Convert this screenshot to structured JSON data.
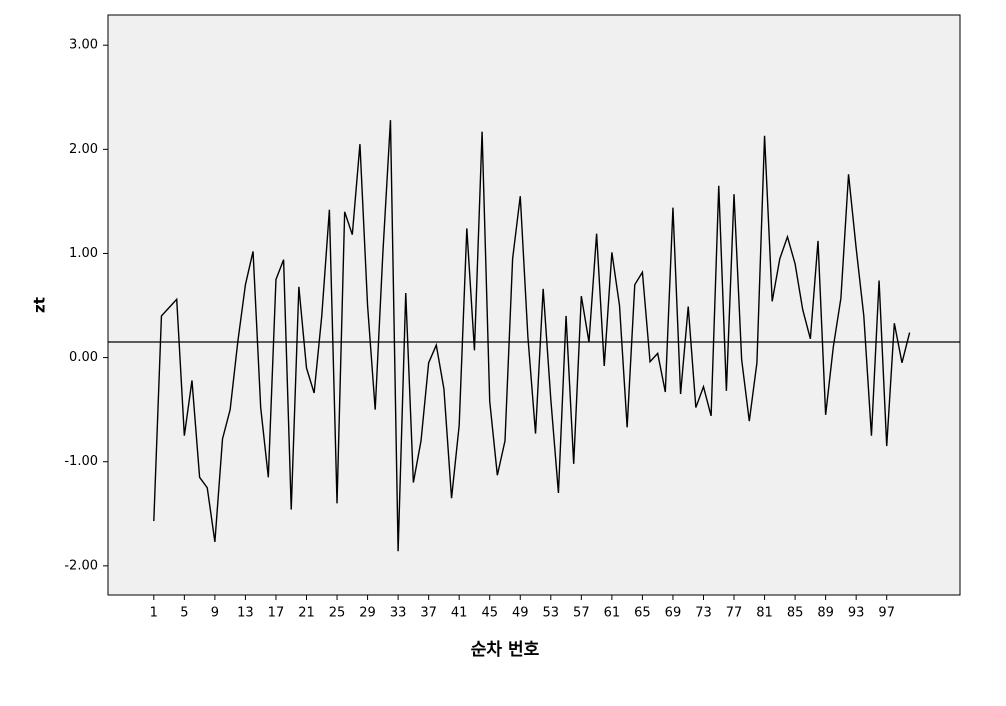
{
  "chart_data": {
    "type": "line",
    "x_label": "순차 번호",
    "y_label": "zt",
    "x": [
      1,
      2,
      3,
      4,
      5,
      6,
      7,
      8,
      9,
      10,
      11,
      12,
      13,
      14,
      15,
      16,
      17,
      18,
      19,
      20,
      21,
      22,
      23,
      24,
      25,
      26,
      27,
      28,
      29,
      30,
      31,
      32,
      33,
      34,
      35,
      36,
      37,
      38,
      39,
      40,
      41,
      42,
      43,
      44,
      45,
      46,
      47,
      48,
      49,
      50,
      51,
      52,
      53,
      54,
      55,
      56,
      57,
      58,
      59,
      60,
      61,
      62,
      63,
      64,
      65,
      66,
      67,
      68,
      69,
      70,
      71,
      72,
      73,
      74,
      75,
      76,
      77,
      78,
      79,
      80,
      81,
      82,
      83,
      84,
      85,
      86,
      87,
      88,
      89,
      90,
      91,
      92,
      93,
      94,
      95,
      96,
      97,
      98,
      99,
      100
    ],
    "series": [
      {
        "name": "zt",
        "color": "#000000",
        "values": [
          -1.57,
          0.4,
          0.48,
          0.56,
          -0.75,
          -0.22,
          -1.15,
          -1.25,
          -1.77,
          -0.78,
          -0.5,
          0.15,
          0.7,
          1.02,
          -0.48,
          -1.15,
          0.75,
          0.94,
          -1.46,
          0.68,
          -0.1,
          -0.34,
          0.4,
          1.42,
          -1.4,
          1.4,
          1.18,
          2.05,
          0.5,
          -0.5,
          1.0,
          2.28,
          -1.86,
          0.62,
          -1.2,
          -0.8,
          -0.05,
          0.12,
          -0.3,
          -1.35,
          -0.65,
          1.24,
          0.07,
          2.17,
          -0.42,
          -1.13,
          -0.8,
          0.95,
          1.55,
          0.2,
          -0.73,
          0.66,
          -0.4,
          -1.3,
          0.4,
          -1.02,
          0.59,
          0.15,
          1.19,
          -0.08,
          1.01,
          0.5,
          -0.67,
          0.7,
          0.82,
          -0.04,
          0.04,
          -0.33,
          1.44,
          -0.35,
          0.49,
          -0.48,
          -0.28,
          -0.56,
          1.65,
          -0.32,
          1.57,
          -0.02,
          -0.61,
          -0.05,
          2.13,
          0.54,
          0.95,
          1.16,
          0.9,
          0.46,
          0.18,
          1.12,
          -0.55,
          0.1,
          0.57,
          1.76,
          1.05,
          0.4,
          -0.75,
          0.74,
          -0.85,
          0.33,
          -0.05,
          0.24
        ]
      }
    ],
    "reference_line": 0.15,
    "xlim": [
      -5,
      106.6
    ],
    "xticks": [
      1,
      5,
      9,
      13,
      17,
      21,
      25,
      29,
      33,
      37,
      41,
      45,
      49,
      53,
      57,
      61,
      65,
      69,
      73,
      77,
      81,
      85,
      89,
      93,
      97
    ],
    "ylim": [
      -2.28,
      3.29
    ],
    "yticks": [
      {
        "value": -2,
        "label": "-2.00"
      },
      {
        "value": -1,
        "label": "-1.00"
      },
      {
        "value": 0,
        "label": "0.00"
      },
      {
        "value": 1,
        "label": "1.00"
      },
      {
        "value": 2,
        "label": "2.00"
      },
      {
        "value": 3,
        "label": "3.00"
      }
    ],
    "background": "#f0f0f0"
  }
}
